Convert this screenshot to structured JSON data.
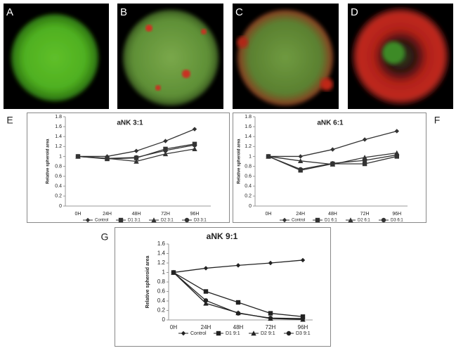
{
  "image_panels": [
    "A",
    "B",
    "C",
    "D"
  ],
  "chart_data": [
    {
      "type": "line",
      "panel": "E",
      "title": "aNK 3:1",
      "ylabel": "Relative spheroid area",
      "categories": [
        "0H",
        "24H",
        "48H",
        "72H",
        "96H"
      ],
      "ylim": [
        0,
        1.8
      ],
      "yticks": [
        0,
        0.2,
        0.4,
        0.6,
        0.8,
        1,
        1.2,
        1.4,
        1.6,
        1.8
      ],
      "series": [
        {
          "name": "Control",
          "color": "#333333",
          "marker": "diamond",
          "values": [
            1,
            1.0,
            1.11,
            1.31,
            1.55
          ]
        },
        {
          "name": "D1 3:1",
          "color": "#333333",
          "marker": "square",
          "values": [
            1,
            0.95,
            0.97,
            1.15,
            1.25
          ]
        },
        {
          "name": "D2 3:1",
          "color": "#333333",
          "marker": "triangle",
          "values": [
            1,
            0.96,
            0.9,
            1.05,
            1.15
          ]
        },
        {
          "name": "D3 3:1",
          "color": "#333333",
          "marker": "circle",
          "values": [
            1,
            0.96,
            0.98,
            1.12,
            1.23
          ]
        }
      ]
    },
    {
      "type": "line",
      "panel": "F",
      "title": "aNK 6:1",
      "ylabel": "Relative spheroid area",
      "categories": [
        "0H",
        "24H",
        "48H",
        "72H",
        "96H"
      ],
      "ylim": [
        0,
        1.8
      ],
      "yticks": [
        0,
        0.2,
        0.4,
        0.6,
        0.8,
        1,
        1.2,
        1.4,
        1.6,
        1.8
      ],
      "series": [
        {
          "name": "Control",
          "color": "#333333",
          "marker": "diamond",
          "values": [
            1,
            1.0,
            1.14,
            1.34,
            1.51
          ]
        },
        {
          "name": "D1 6:1",
          "color": "#333333",
          "marker": "square",
          "values": [
            1,
            0.72,
            0.85,
            0.85,
            1.0
          ]
        },
        {
          "name": "D2 6:1",
          "color": "#333333",
          "marker": "triangle",
          "values": [
            1,
            0.91,
            0.84,
            0.98,
            1.07
          ]
        },
        {
          "name": "D3 6:1",
          "color": "#333333",
          "marker": "circle",
          "values": [
            1,
            0.74,
            0.86,
            0.92,
            1.03
          ]
        }
      ]
    },
    {
      "type": "line",
      "panel": "G",
      "title": "aNK 9:1",
      "ylabel": "Relative spheroid area",
      "categories": [
        "0H",
        "24H",
        "48H",
        "72H",
        "96H"
      ],
      "ylim": [
        0,
        1.6
      ],
      "yticks": [
        0,
        0.2,
        0.4,
        0.6,
        0.8,
        1,
        1.2,
        1.4,
        1.6
      ],
      "series": [
        {
          "name": "Control",
          "color": "#222222",
          "marker": "diamond",
          "values": [
            1,
            1.09,
            1.15,
            1.2,
            1.26
          ]
        },
        {
          "name": "D1 9:1",
          "color": "#222222",
          "marker": "square",
          "values": [
            1,
            0.6,
            0.37,
            0.14,
            0.07
          ]
        },
        {
          "name": "D2 9:1",
          "color": "#222222",
          "marker": "triangle",
          "values": [
            1,
            0.35,
            0.15,
            0.03,
            0.01
          ]
        },
        {
          "name": "D3 9:1",
          "color": "#222222",
          "marker": "circle",
          "values": [
            1,
            0.41,
            0.14,
            0.04,
            0.03
          ]
        }
      ]
    }
  ]
}
